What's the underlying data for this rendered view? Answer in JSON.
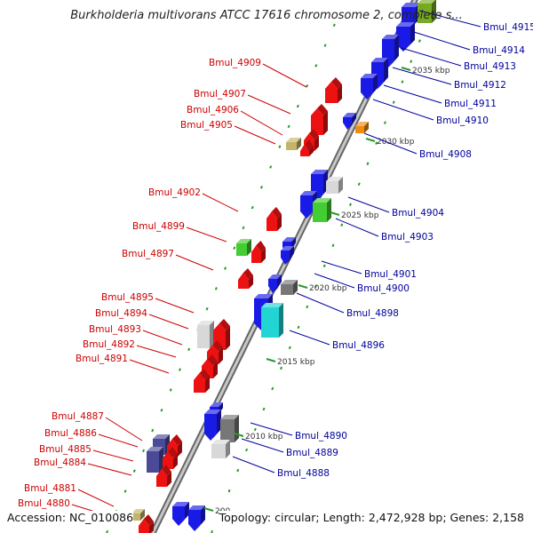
{
  "title": "Burkholderia multivorans ATCC 17616 chromosome 2, complete s...",
  "accession": "Accession: NC_010086",
  "stats": "Topology: circular; Length: 2,472,928 bp; Genes: 2,158",
  "colors": {
    "forward_label": "#cc0000",
    "reverse_label": "#00009c",
    "red": "#ee1111",
    "blue": "#1a1ae6",
    "green": "#44cc33",
    "cyan": "#22d4d4",
    "gray": "#777777",
    "light_gray": "#d8d8d8",
    "navy": "#4a4a99",
    "orange": "#f08c10",
    "khaki": "#c2b56a",
    "olive": "#77aa22",
    "backbone": "#8a8a8a"
  },
  "scale_ticks": [
    "2035 kbp",
    "2030 kbp",
    "2025 kbp",
    "2020 kbp",
    "2015 kbp",
    "2010 kbp",
    "200..."
  ],
  "genes_left": [
    "Bmul_4909",
    "Bmul_4907",
    "Bmul_4906",
    "Bmul_4905",
    "Bmul_4902",
    "Bmul_4899",
    "Bmul_4897",
    "Bmul_4895",
    "Bmul_4894",
    "Bmul_4893",
    "Bmul_4892",
    "Bmul_4891",
    "Bmul_4887",
    "Bmul_4886",
    "Bmul_4885",
    "Bmul_4884",
    "Bmul_4881",
    "Bmul_4880"
  ],
  "genes_right": [
    "Bmul_4915",
    "Bmul_4914",
    "Bmul_4913",
    "Bmul_4912",
    "Bmul_4911",
    "Bmul_4910",
    "Bmul_4908",
    "Bmul_4904",
    "Bmul_4903",
    "Bmul_4901",
    "Bmul_4900",
    "Bmul_4898",
    "Bmul_4896",
    "Bmul_4890",
    "Bmul_4889",
    "Bmul_4888"
  ]
}
